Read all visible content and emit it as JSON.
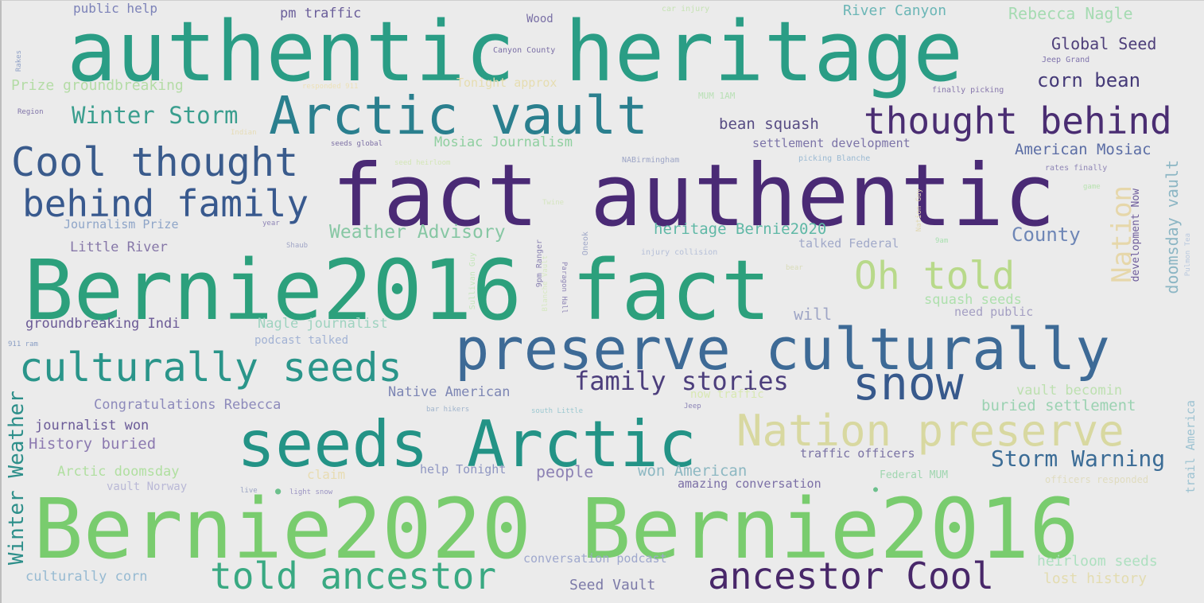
{
  "words": [
    {
      "text": "authentic heritage",
      "color": "#2a9d85"
    },
    {
      "text": "fact authentic",
      "color": "#4a2a75"
    },
    {
      "text": "Bernie2016 fact",
      "color": "#2ca07c"
    },
    {
      "text": "Bernie2020 Bernie2016",
      "color": "#79cc6e"
    },
    {
      "text": "preserve culturally",
      "color": "#3d6a96"
    },
    {
      "text": "seeds Arctic",
      "color": "#239386"
    },
    {
      "text": "Arctic vault",
      "color": "#2a7f8e"
    },
    {
      "text": "thought behind",
      "color": "#4a2d72"
    },
    {
      "text": "Nation preserve",
      "color": "#d8d8a0"
    },
    {
      "text": "Cool thought",
      "color": "#3a5b8c"
    },
    {
      "text": "behind family",
      "color": "#38598e"
    },
    {
      "text": "culturally seeds",
      "color": "#2a958a"
    },
    {
      "text": "told ancestor",
      "color": "#39a982"
    },
    {
      "text": "ancestor Cool",
      "color": "#482769"
    },
    {
      "text": "snow",
      "color": "#37598c"
    },
    {
      "text": "Oh told",
      "color": "#b8d98a"
    },
    {
      "text": "family stories",
      "color": "#4c3e7c"
    },
    {
      "text": "Storm Warning",
      "color": "#3b6c96"
    },
    {
      "text": "Winter Storm",
      "color": "#3a9e8e"
    },
    {
      "text": "Winter Weather",
      "color": "#2d8f8a"
    },
    {
      "text": "corn bean",
      "color": "#453a78"
    },
    {
      "text": "Global Seed",
      "color": "#4e3f7a"
    },
    {
      "text": "Rebecca Nagle",
      "color": "#a5dbb2"
    },
    {
      "text": "River Canyon",
      "color": "#6bb6b6"
    },
    {
      "text": "pm traffic",
      "color": "#6a5e9a"
    },
    {
      "text": "public help",
      "color": "#7c82b8"
    },
    {
      "text": "Prize groundbreaking",
      "color": "#b4dca6"
    },
    {
      "text": "Tonight approx",
      "color": "#e6ddb0"
    },
    {
      "text": "bean squash",
      "color": "#574c84"
    },
    {
      "text": "settlement development",
      "color": "#7c74a8"
    },
    {
      "text": "American Mosiac",
      "color": "#5b6da5"
    },
    {
      "text": "Mosiac Journalism",
      "color": "#8fcfa0"
    },
    {
      "text": "Journalism Prize",
      "color": "#8ea5c8"
    },
    {
      "text": "Little River",
      "color": "#8677a8"
    },
    {
      "text": "Weather Advisory",
      "color": "#87c7a4"
    },
    {
      "text": "heritage Bernie2020",
      "color": "#5fb8a6"
    },
    {
      "text": "talked Federal",
      "color": "#a1a9c9"
    },
    {
      "text": "County",
      "color": "#6e86b6"
    },
    {
      "text": "will",
      "color": "#9fa6c6"
    },
    {
      "text": "need public",
      "color": "#a49fc3"
    },
    {
      "text": "squash seeds",
      "color": "#aee0ad"
    },
    {
      "text": "groundbreaking Indi",
      "color": "#6b5a96"
    },
    {
      "text": "Nagle journalist",
      "color": "#9fd3c0"
    },
    {
      "text": "podcast talked",
      "color": "#a2b2d4"
    },
    {
      "text": "Native American",
      "color": "#7d86b4"
    },
    {
      "text": "now traffic",
      "color": "#d8e8b2"
    },
    {
      "text": "vault becomin",
      "color": "#bde0b0"
    },
    {
      "text": "buried settlement",
      "color": "#9bd2b2"
    },
    {
      "text": "Congratulations Rebecca",
      "color": "#8d8abb"
    },
    {
      "text": "journalist won",
      "color": "#6b5b98"
    },
    {
      "text": "History buried",
      "color": "#8c7ab0"
    },
    {
      "text": "Arctic doomsday",
      "color": "#b0dfa0"
    },
    {
      "text": "vault Norway",
      "color": "#b9b8d6"
    },
    {
      "text": "claim",
      "color": "#e8dcb2"
    },
    {
      "text": "help Tonight",
      "color": "#8f96c2"
    },
    {
      "text": "people",
      "color": "#8d82b4"
    },
    {
      "text": "won American",
      "color": "#8db8c2"
    },
    {
      "text": "amazing conversation",
      "color": "#7b6fa6"
    },
    {
      "text": "traffic officers",
      "color": "#7a72a4"
    },
    {
      "text": "Federal MUM",
      "color": "#a0d6b0"
    },
    {
      "text": "officers responded",
      "color": "#e0dcc0"
    },
    {
      "text": "conversation podcast",
      "color": "#9fa8cd"
    },
    {
      "text": "heirloom seeds",
      "color": "#aee0c0"
    },
    {
      "text": "lost history",
      "color": "#e3dcb0"
    },
    {
      "text": "Seed Vault",
      "color": "#7c7aa8"
    },
    {
      "text": "culturally corn",
      "color": "#96bad2"
    },
    {
      "text": "Nation",
      "color": "#e6d7aa"
    },
    {
      "text": "doomsday vault",
      "color": "#8cb6c4"
    },
    {
      "text": "development Now",
      "color": "#6f5e9c"
    },
    {
      "text": "trail America",
      "color": "#9ec3d2"
    },
    {
      "text": "Wood",
      "color": "#7a70a6"
    },
    {
      "text": "car injury",
      "color": "#c6e3b4"
    },
    {
      "text": "Canyon County",
      "color": "#7b6fa6"
    },
    {
      "text": "Jeep Grand",
      "color": "#7f73ac"
    },
    {
      "text": "finally picking",
      "color": "#8777ac"
    },
    {
      "text": "responded 911",
      "color": "#ece1b8"
    },
    {
      "text": "MUM 1AM",
      "color": "#b9e0b6"
    },
    {
      "text": "Region",
      "color": "#7f73a8"
    },
    {
      "text": "Indian",
      "color": "#e6dcb6"
    },
    {
      "text": "seeds global",
      "color": "#7c6fa4"
    },
    {
      "text": "seed heirloom",
      "color": "#d3e6b6"
    },
    {
      "text": "NABirmingham",
      "color": "#9da5c6"
    },
    {
      "text": "picking Blanche",
      "color": "#9ab9d2"
    },
    {
      "text": "rates finally",
      "color": "#8f86b6"
    },
    {
      "text": "game",
      "color": "#b8e2b0"
    },
    {
      "text": "injury collision",
      "color": "#b5bfd8"
    },
    {
      "text": "Shaub",
      "color": "#a0a5c6"
    },
    {
      "text": "9pm Ranger",
      "color": "#8a82b2"
    },
    {
      "text": "Jeep",
      "color": "#8b84b6"
    },
    {
      "text": "9am",
      "color": "#a9e0b0"
    },
    {
      "text": "Pulmon Tea",
      "color": "#b9c8de"
    },
    {
      "text": "Blanche Vault",
      "color": "#d6e8c0"
    },
    {
      "text": "Paragon Hall",
      "color": "#8f86b6"
    },
    {
      "text": "Oneok",
      "color": "#a0a8c8"
    },
    {
      "text": "Sullivan Guy",
      "color": "#c6e6bc"
    },
    {
      "text": "Twine",
      "color": "#d5e5c0"
    },
    {
      "text": "bar hikers",
      "color": "#a0b4cc"
    },
    {
      "text": "south Little",
      "color": "#9bc8d0"
    },
    {
      "text": "light snow",
      "color": "#9a93c2"
    },
    {
      "text": "live",
      "color": "#9aa3c4"
    },
    {
      "text": "Nation Guy",
      "color": "#e0d8b2"
    },
    {
      "text": "911 ram",
      "color": "#8a9ec4"
    },
    {
      "text": "year",
      "color": "#8f86b6"
    },
    {
      "text": "bear",
      "color": "#d9dcb8"
    },
    {
      "text": "Rakes",
      "color": "#8fa0c6"
    },
    {
      "text": "rail",
      "color": "#b6dcb0"
    }
  ]
}
